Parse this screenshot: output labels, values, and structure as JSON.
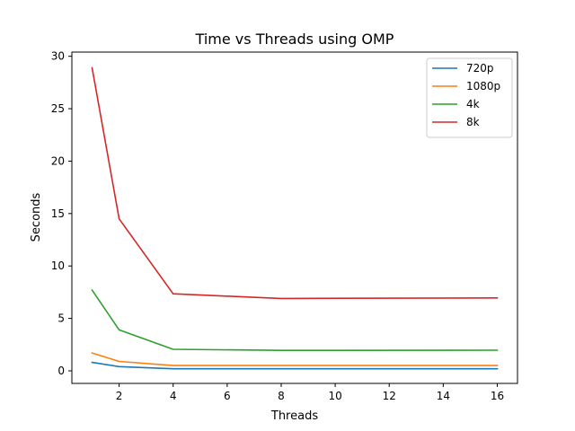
{
  "chart_data": {
    "type": "line",
    "title": "Time vs Threads using OMP",
    "xlabel": "Threads",
    "ylabel": "Seconds",
    "xlim": [
      0.25,
      16.75
    ],
    "ylim": [
      -1.2,
      30.4
    ],
    "xticks": [
      2,
      4,
      6,
      8,
      10,
      12,
      14,
      16
    ],
    "yticks": [
      0,
      5,
      10,
      15,
      20,
      25,
      30
    ],
    "legend_position": "top-right",
    "x": [
      1,
      2,
      4,
      8,
      16
    ],
    "series": [
      {
        "name": "720p",
        "color": "#1f77b4",
        "values": [
          0.8,
          0.4,
          0.2,
          0.2,
          0.2
        ]
      },
      {
        "name": "1080p",
        "color": "#ff7f0e",
        "values": [
          1.7,
          0.9,
          0.5,
          0.5,
          0.5
        ]
      },
      {
        "name": "4k",
        "color": "#2ca02c",
        "values": [
          7.7,
          3.9,
          2.05,
          1.95,
          1.97
        ]
      },
      {
        "name": "8k",
        "color": "#d62728",
        "values": [
          28.9,
          14.5,
          7.35,
          6.9,
          6.95
        ]
      }
    ]
  }
}
